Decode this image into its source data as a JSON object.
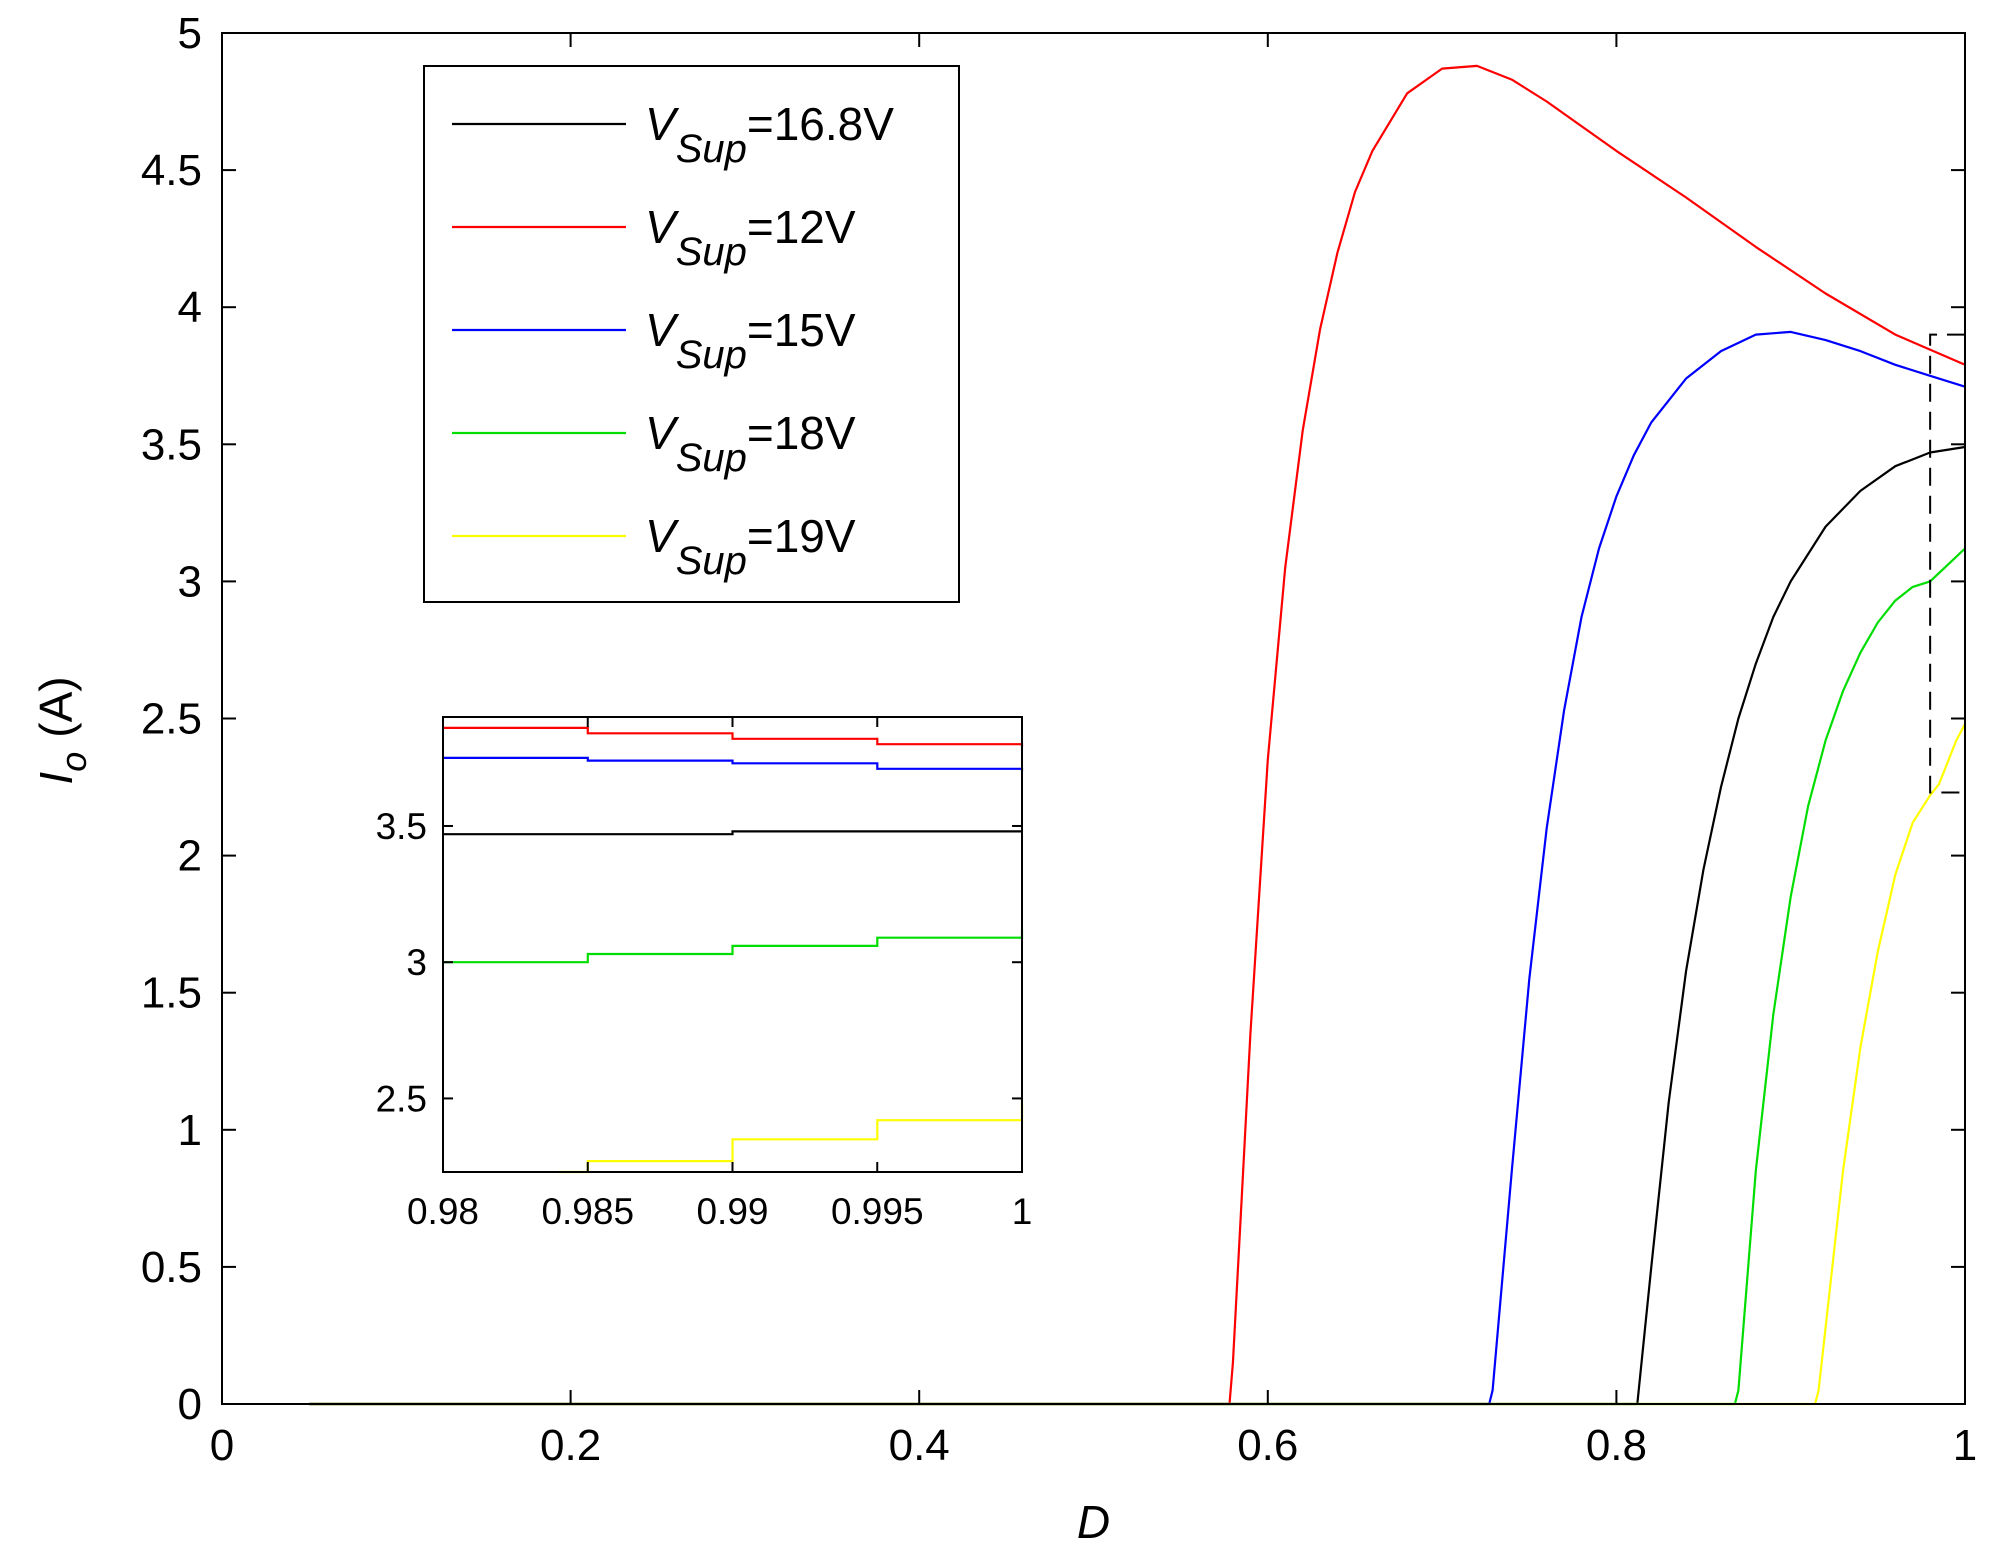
{
  "chart_data": {
    "type": "line",
    "title": "",
    "xlabel": "D",
    "ylabel": {
      "symbol": "I",
      "subscript": "o",
      "unit": "(A)"
    },
    "xlim": [
      0,
      1
    ],
    "ylim": [
      0,
      5
    ],
    "xticks": [
      "0",
      "0.2",
      "0.4",
      "0.6",
      "0.8",
      "1"
    ],
    "yticks": [
      "0",
      "0.5",
      "1",
      "1.5",
      "2",
      "2.5",
      "3",
      "3.5",
      "4",
      "4.5",
      "5"
    ],
    "legend_position": "top-left",
    "series": [
      {
        "name": "V_Sup=16.8V",
        "label_var": "V",
        "label_sub": "Sup",
        "label_val": "=16.8V",
        "color": "#000000",
        "x": [
          0.05,
          0.812,
          0.812,
          0.82,
          0.83,
          0.84,
          0.85,
          0.86,
          0.87,
          0.88,
          0.89,
          0.9,
          0.92,
          0.94,
          0.96,
          0.98,
          1.0
        ],
        "y": [
          0,
          0,
          0,
          0.5,
          1.1,
          1.58,
          1.95,
          2.25,
          2.5,
          2.7,
          2.87,
          3.0,
          3.2,
          3.33,
          3.42,
          3.47,
          3.49
        ]
      },
      {
        "name": "V_Sup=12V",
        "label_var": "V",
        "label_sub": "Sup",
        "label_val": "=12V",
        "color": "#ff0000",
        "x": [
          0.05,
          0.578,
          0.58,
          0.585,
          0.59,
          0.6,
          0.61,
          0.62,
          0.63,
          0.64,
          0.65,
          0.66,
          0.68,
          0.7,
          0.72,
          0.74,
          0.76,
          0.8,
          0.84,
          0.88,
          0.92,
          0.96,
          1.0
        ],
        "y": [
          0,
          0,
          0.15,
          0.75,
          1.35,
          2.35,
          3.05,
          3.55,
          3.92,
          4.2,
          4.42,
          4.57,
          4.78,
          4.87,
          4.88,
          4.83,
          4.75,
          4.57,
          4.4,
          4.22,
          4.05,
          3.9,
          3.79
        ]
      },
      {
        "name": "V_Sup=15V",
        "label_var": "V",
        "label_sub": "Sup",
        "label_val": "=15V",
        "color": "#0000ff",
        "x": [
          0.05,
          0.727,
          0.729,
          0.74,
          0.75,
          0.76,
          0.77,
          0.78,
          0.79,
          0.8,
          0.81,
          0.82,
          0.84,
          0.86,
          0.88,
          0.9,
          0.92,
          0.94,
          0.96,
          0.98,
          1.0
        ],
        "y": [
          0,
          0,
          0.05,
          0.85,
          1.55,
          2.1,
          2.53,
          2.87,
          3.12,
          3.31,
          3.46,
          3.58,
          3.74,
          3.84,
          3.9,
          3.91,
          3.88,
          3.84,
          3.79,
          3.75,
          3.71
        ]
      },
      {
        "name": "V_Sup=18V",
        "label_var": "V",
        "label_sub": "Sup",
        "label_val": "=18V",
        "color": "#00dd00",
        "x": [
          0.05,
          0.868,
          0.87,
          0.88,
          0.89,
          0.9,
          0.91,
          0.92,
          0.93,
          0.94,
          0.95,
          0.96,
          0.97,
          0.98,
          0.99,
          1.0
        ],
        "y": [
          0,
          0,
          0.05,
          0.85,
          1.42,
          1.85,
          2.18,
          2.42,
          2.6,
          2.74,
          2.85,
          2.93,
          2.98,
          3.0,
          3.06,
          3.12
        ]
      },
      {
        "name": "V_Sup=19V",
        "label_var": "V",
        "label_sub": "Sup",
        "label_val": "=19V",
        "color": "#ffff00",
        "x": [
          0.05,
          0.914,
          0.916,
          0.93,
          0.94,
          0.95,
          0.96,
          0.97,
          0.98,
          0.985,
          0.99,
          0.995,
          1.0
        ],
        "y": [
          0,
          0,
          0.05,
          0.85,
          1.3,
          1.65,
          1.93,
          2.12,
          2.22,
          2.26,
          2.34,
          2.42,
          2.48
        ]
      }
    ],
    "inset": {
      "xlim": [
        0.98,
        1.0
      ],
      "ylim": [
        2.23,
        3.9
      ],
      "xticks": [
        "0.98",
        "0.985",
        "0.99",
        "0.995",
        "1"
      ],
      "yticks": [
        "2.5",
        "3",
        "3.5"
      ],
      "series": [
        {
          "color": "#ff0000",
          "x": [
            0.98,
            0.985,
            0.99,
            0.995,
            1.0
          ],
          "y": [
            3.86,
            3.84,
            3.82,
            3.8,
            3.79
          ]
        },
        {
          "color": "#0000ff",
          "x": [
            0.98,
            0.985,
            0.99,
            0.995,
            1.0
          ],
          "y": [
            3.75,
            3.74,
            3.73,
            3.71,
            3.7
          ]
        },
        {
          "color": "#000000",
          "x": [
            0.98,
            0.985,
            0.99,
            0.995,
            1.0
          ],
          "y": [
            3.47,
            3.47,
            3.48,
            3.48,
            3.48
          ]
        },
        {
          "color": "#00dd00",
          "x": [
            0.98,
            0.985,
            0.99,
            0.995,
            1.0
          ],
          "y": [
            3.0,
            3.03,
            3.06,
            3.09,
            3.12
          ]
        },
        {
          "color": "#ffff00",
          "x": [
            0.984,
            0.985,
            0.99,
            0.995,
            1.0
          ],
          "y": [
            2.23,
            2.27,
            2.35,
            2.42,
            2.49
          ]
        }
      ]
    },
    "zoom_box": {
      "x": [
        0.98,
        1.0
      ],
      "y": [
        2.23,
        3.9
      ]
    }
  }
}
